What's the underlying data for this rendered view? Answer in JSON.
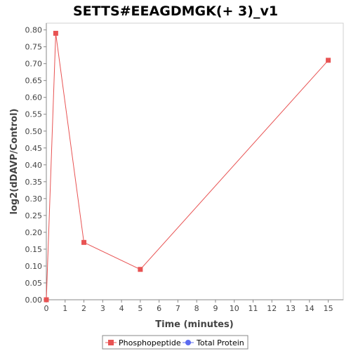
{
  "chart_data": {
    "type": "line",
    "title": "SETTS#EEAGDMGK(+ 3)_v1",
    "xlabel": "Time (minutes)",
    "ylabel": "log2(dDAVP/Control)",
    "xlim": [
      0,
      15.8
    ],
    "ylim": [
      0,
      0.82
    ],
    "x_ticks": [
      "0",
      "1",
      "2",
      "3",
      "4",
      "5",
      "6",
      "7",
      "8",
      "9",
      "10",
      "11",
      "12",
      "13",
      "14",
      "15"
    ],
    "y_ticks": [
      "0.00",
      "0.05",
      "0.10",
      "0.15",
      "0.20",
      "0.25",
      "0.30",
      "0.35",
      "0.40",
      "0.45",
      "0.50",
      "0.55",
      "0.60",
      "0.65",
      "0.70",
      "0.75",
      "0.80"
    ],
    "series": [
      {
        "name": "Phosphopeptide",
        "color": "#e85353",
        "marker": "square",
        "x": [
          0,
          0.5,
          2,
          5,
          15
        ],
        "y": [
          0.0,
          0.79,
          0.17,
          0.09,
          0.71
        ]
      },
      {
        "name": "Total Protein",
        "color": "#5b6bf0",
        "marker": "circle",
        "x": [],
        "y": []
      }
    ],
    "legend_position": "bottom",
    "grid": false
  }
}
